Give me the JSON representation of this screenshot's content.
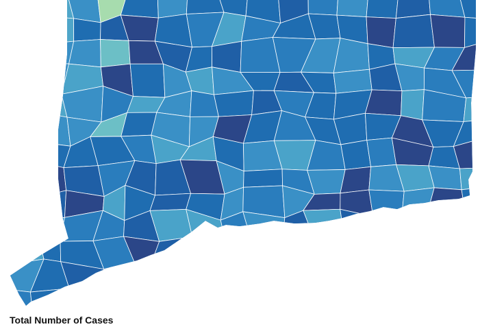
{
  "legend": {
    "title": "Total Number of Cases"
  }
}
